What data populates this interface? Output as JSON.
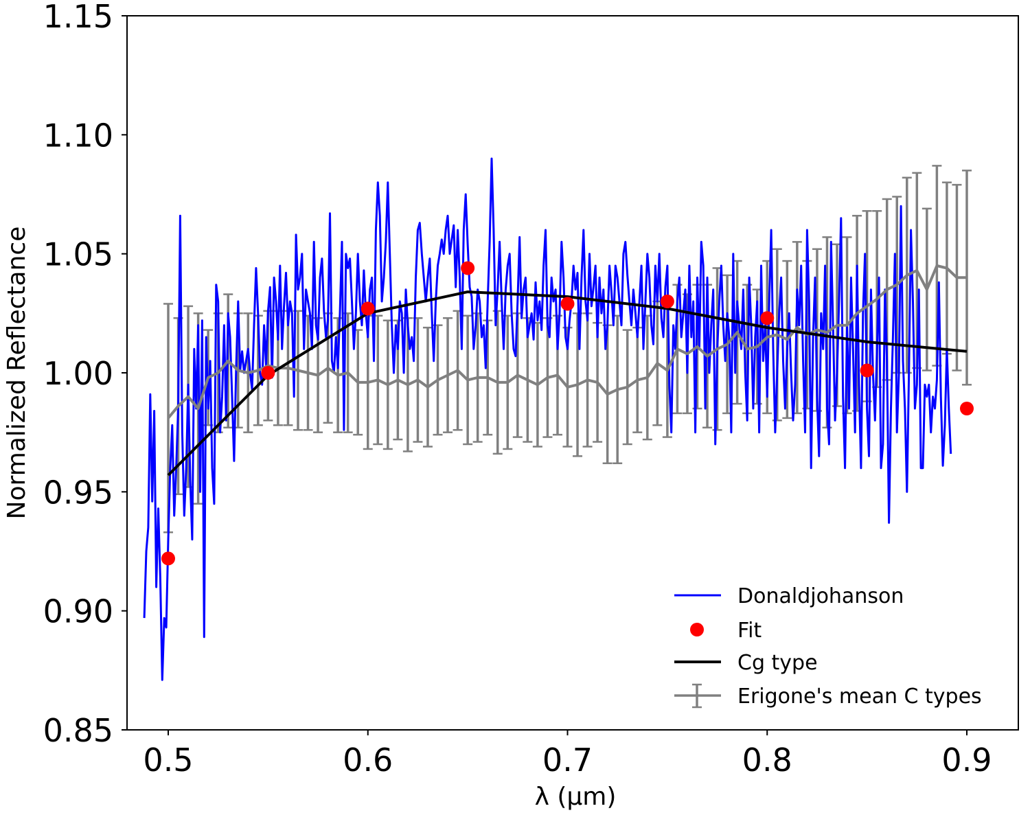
{
  "chart_data": {
    "type": "line",
    "xlabel": "λ (μm)",
    "ylabel": "Normalized Reflectance",
    "xlim": [
      0.48,
      0.922
    ],
    "ylim": [
      0.85,
      1.15
    ],
    "xticks": [
      0.5,
      0.6,
      0.7,
      0.8,
      0.9
    ],
    "xtick_labels": [
      "0.5",
      "0.6",
      "0.7",
      "0.8",
      "0.9"
    ],
    "yticks": [
      0.85,
      0.9,
      0.95,
      1.0,
      1.05,
      1.1,
      1.15
    ],
    "ytick_labels": [
      "0.85",
      "0.90",
      "0.95",
      "1.00",
      "1.05",
      "1.10",
      "1.15"
    ],
    "grid": false,
    "legend_position": "lower-right",
    "colors": {
      "spectrum": "#0000ff",
      "fit": "#ff0000",
      "cg": "#000000",
      "erigone": "#808080"
    },
    "series": [
      {
        "name": "Donaldjohanson",
        "kind": "line",
        "x_start": 0.488,
        "x_step": 0.001,
        "y": [
          0.897,
          0.925,
          0.935,
          0.991,
          0.946,
          0.984,
          0.91,
          0.943,
          0.914,
          0.871,
          0.897,
          0.893,
          0.93,
          0.96,
          0.978,
          0.94,
          0.96,
          0.985,
          1.066,
          0.975,
          0.94,
          0.96,
          0.995,
          0.955,
          0.93,
          1.01,
          0.985,
          1.02,
          0.95,
          1.022,
          0.889,
          1.015,
          0.985,
          1.005,
          0.96,
          0.945,
          1.037,
          1.03,
          0.975,
          0.99,
          1.02,
          0.98,
          1.025,
          1.015,
          0.99,
          0.963,
          1.002,
          1.03,
          1.001,
          1.009,
          1.0,
          1.005,
          1.01,
          1.0,
          0.993,
          1.02,
          1.044,
          1.025,
          1.0,
          0.995,
          1.02,
          1.003,
          1.026,
          1.036,
          0.998,
          1.04,
          1.03,
          1.014,
          1.045,
          1.01,
          1.028,
          1.042,
          1.02,
          1.03,
          1.025,
          0.99,
          1.058,
          1.035,
          1.04,
          1.05,
          1.01,
          1.035,
          1.03,
          1.025,
          1.01,
          1.055,
          1.02,
          1.014,
          1.04,
          1.048,
          1.026,
          1.015,
          1.022,
          1.067,
          1.005,
          1.0,
          1.015,
          1.002,
          1.025,
          1.055,
          0.976,
          1.05,
          1.044,
          1.048,
          1.03,
          1.01,
          1.025,
          1.05,
          1.03,
          1.02,
          1.043,
          1.025,
          1.015,
          1.035,
          1.04,
          1.005,
          1.06,
          1.08,
          1.066,
          1.03,
          1.04,
          1.055,
          1.08,
          1.05,
          1.02,
          1.0,
          1.02,
          1.01,
          1.03,
          1.025,
          1.0,
          1.035,
          1.02,
          1.01,
          1.015,
          1.005,
          1.04,
          1.06,
          1.063,
          1.05,
          1.04,
          1.03,
          1.04,
          1.048,
          1.025,
          1.005,
          1.03,
          1.045,
          1.05,
          1.056,
          1.05,
          1.06,
          1.066,
          1.05,
          1.056,
          1.062,
          1.036,
          1.06,
          1.04,
          1.01,
          1.06,
          1.075,
          1.054,
          1.036,
          1.032,
          1.01,
          1.02,
          1.035,
          1.03,
          1.015,
          1.02,
          1.002,
          1.03,
          1.055,
          1.09,
          1.06,
          1.02,
          1.035,
          1.055,
          1.03,
          1.01,
          1.035,
          1.045,
          1.05,
          1.025,
          1.01,
          1.007,
          1.03,
          1.057,
          1.023,
          1.035,
          1.04,
          1.015,
          1.02,
          1.025,
          1.014,
          1.038,
          1.022,
          1.03,
          1.018,
          1.045,
          1.06,
          1.02,
          1.015,
          1.04,
          1.03,
          1.035,
          1.01,
          1.025,
          1.055,
          1.04,
          1.015,
          1.01,
          1.022,
          1.03,
          1.045,
          1.035,
          1.042,
          1.01,
          1.04,
          1.06,
          1.03,
          1.022,
          1.05,
          1.028,
          1.036,
          1.045,
          1.015,
          1.04,
          1.025,
          1.035,
          1.01,
          1.02,
          1.045,
          1.034,
          1.02,
          1.045,
          1.04,
          1.03,
          1.02,
          1.05,
          1.055,
          1.041,
          1.03,
          1.02,
          1.035,
          1.025,
          1.015,
          1.03,
          1.045,
          1.01,
          1.03,
          1.05,
          1.04,
          1.02,
          1.012,
          1.045,
          1.03,
          1.05,
          1.023,
          1.015,
          1.036,
          1.045,
          0.995,
          0.975,
          1.02,
          1.01,
          1.03,
          1.04,
          1.015,
          1.025,
          1.035,
          1.0,
          1.045,
          1.015,
          1.03,
          0.975,
          1.04,
          1.01,
          1.055,
          1.045,
          0.985,
          1.04,
          1.0,
          1.02,
          1.035,
          0.97,
          1.01,
          1.03,
          1.045,
          1.02,
          1.005,
          1.025,
          1.015,
          0.975,
          1.05,
          1.0,
          1.03,
          1.02,
          1.01,
          1.035,
          1.0,
          0.98,
          1.04,
          1.02,
          0.985,
          1.015,
          1.03,
          0.975,
          1.045,
          1.005,
          1.02,
          0.99,
          1.03,
          1.06,
          1.01,
          0.975,
          1.0,
          1.025,
          1.04,
          1.005,
          0.985,
          1.01,
          1.025,
          1.0,
          0.98,
          0.995,
          1.035,
          1.02,
          1.045,
          1.005,
          0.975,
          1.06,
          1.03,
          0.96,
          1.015,
          1.04,
          0.99,
          0.965,
          1.025,
          1.01,
          1.045,
          0.985,
          0.97,
          1.055,
          1.02,
          0.98,
          1.0,
          1.03,
          1.065,
          0.99,
          0.96,
          1.02,
          0.985,
          1.04,
          1.01,
          0.975,
          1.045,
          0.995,
          0.96,
          1.025,
          1.05,
          0.985,
          0.965,
          1.035,
          1.0,
          0.98,
          1.01,
          1.04,
          0.96,
          0.97,
          1.035,
          1.005,
          0.937,
          0.985,
          1.015,
          1.05,
          0.975,
          1.0,
          1.07,
          1.005,
          0.985,
          0.95,
          1.0,
          1.06,
          1.03,
          0.985,
          0.995,
          1.035,
          0.96,
          0.96,
          0.995,
          0.99,
          0.995,
          0.975,
          0.99,
          0.985,
          0.997,
          1.038,
          0.99,
          0.961,
          0.978,
          1.01,
          0.985,
          0.966
        ]
      },
      {
        "name": "Fit",
        "kind": "scatter",
        "x": [
          0.5,
          0.55,
          0.6,
          0.65,
          0.7,
          0.75,
          0.8,
          0.85,
          0.9
        ],
        "y": [
          0.922,
          1.0,
          1.027,
          1.044,
          1.029,
          1.03,
          1.023,
          1.001,
          0.985
        ]
      },
      {
        "name": "Cg type",
        "kind": "line",
        "x": [
          0.5,
          0.55,
          0.6,
          0.65,
          0.7,
          0.75,
          0.8,
          0.85,
          0.9
        ],
        "y": [
          0.957,
          0.999,
          1.025,
          1.034,
          1.032,
          1.027,
          1.019,
          1.013,
          1.009
        ]
      },
      {
        "name": "Erigone's mean C types",
        "kind": "errorbar",
        "x_start": 0.5,
        "x_step": 0.005,
        "y": [
          0.981,
          0.986,
          0.99,
          0.985,
          0.998,
          1.0,
          1.005,
          1.001,
          1.0,
          1.001,
          1.003,
          1.002,
          1.002,
          1.001,
          1.0,
          0.999,
          1.002,
          0.999,
          1.0,
          0.996,
          0.996,
          0.997,
          0.995,
          0.997,
          0.995,
          0.997,
          0.994,
          0.997,
          0.999,
          1.001,
          0.997,
          0.998,
          0.998,
          0.996,
          0.996,
          0.999,
          0.997,
          0.995,
          0.998,
          0.999,
          0.994,
          0.995,
          0.997,
          0.996,
          0.991,
          0.993,
          0.994,
          0.997,
          0.998,
          1.004,
          1.001,
          1.01,
          1.008,
          1.011,
          1.007,
          1.01,
          1.012,
          1.017,
          1.01,
          1.011,
          1.015,
          1.016,
          1.014,
          1.019,
          1.016,
          1.018,
          1.017,
          1.02,
          1.02,
          1.025,
          1.028,
          1.031,
          1.035,
          1.037,
          1.041,
          1.043,
          1.035,
          1.045,
          1.044,
          1.04,
          1.04
        ],
        "err": [
          0.048,
          0.037,
          0.038,
          0.04,
          0.02,
          0.025,
          0.028,
          0.024,
          0.025,
          0.023,
          0.023,
          0.024,
          0.024,
          0.025,
          0.024,
          0.024,
          0.023,
          0.024,
          0.025,
          0.022,
          0.028,
          0.027,
          0.027,
          0.025,
          0.028,
          0.026,
          0.025,
          0.023,
          0.024,
          0.025,
          0.027,
          0.027,
          0.024,
          0.03,
          0.028,
          0.026,
          0.026,
          0.026,
          0.025,
          0.025,
          0.025,
          0.03,
          0.028,
          0.025,
          0.029,
          0.031,
          0.024,
          0.022,
          0.026,
          0.026,
          0.028,
          0.027,
          0.025,
          0.026,
          0.03,
          0.034,
          0.029,
          0.03,
          0.027,
          0.024,
          0.032,
          0.036,
          0.033,
          0.036,
          0.031,
          0.034,
          0.04,
          0.034,
          0.037,
          0.041,
          0.04,
          0.037,
          0.038,
          0.037,
          0.041,
          0.041,
          0.034,
          0.042,
          0.036,
          0.039,
          0.045
        ]
      }
    ],
    "legend": [
      "Donaldjohanson",
      "Fit",
      "Cg type",
      "Erigone's mean C types"
    ]
  }
}
